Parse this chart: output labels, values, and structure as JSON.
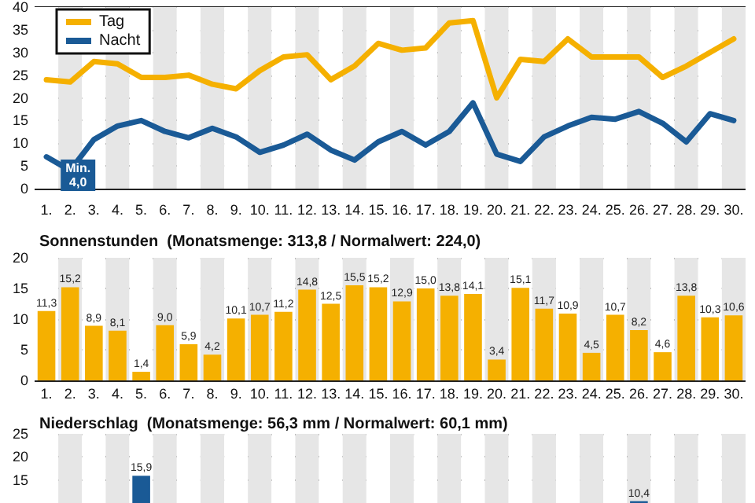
{
  "chart_data": [
    {
      "type": "line",
      "categories": [
        "1.",
        "2.",
        "3.",
        "4.",
        "5.",
        "6.",
        "7.",
        "8.",
        "9.",
        "10.",
        "11.",
        "12.",
        "13.",
        "14.",
        "15.",
        "16.",
        "17.",
        "18.",
        "19.",
        "20.",
        "21.",
        "22.",
        "23.",
        "24.",
        "25.",
        "26.",
        "27.",
        "28.",
        "29.",
        "30."
      ],
      "series": [
        {
          "name": "Tag",
          "color": "#f5b000",
          "values": [
            24,
            23.5,
            28,
            27.5,
            24.5,
            24.5,
            25,
            23,
            22,
            26,
            29,
            29.5,
            24,
            27,
            32,
            30.5,
            31,
            36.5,
            37,
            20,
            28.5,
            28,
            33,
            29,
            29,
            29,
            24.5,
            27,
            30,
            33
          ]
        },
        {
          "name": "Nacht",
          "color": "#1a5a96",
          "values": [
            7,
            4,
            10.8,
            13.8,
            15,
            12.6,
            11.2,
            13.3,
            11.4,
            8,
            9.6,
            12,
            8.5,
            6.3,
            10.3,
            12.6,
            9.6,
            12.6,
            18.9,
            7.6,
            6,
            11.4,
            13.8,
            15.7,
            15.3,
            17,
            14.4,
            10.3,
            16.5,
            15
          ]
        }
      ],
      "ylim": [
        0,
        40
      ],
      "yticks": [
        0,
        5,
        10,
        15,
        20,
        25,
        30,
        35,
        40
      ],
      "grid": "y",
      "legend": "top left",
      "marker": "none",
      "annotations": [
        {
          "text": "Min.\n4,0",
          "x": "2.",
          "y": 4
        }
      ]
    },
    {
      "type": "bar",
      "title": "Sonnenstunden  (Monatsmenge: 313,8 / Normalwert: 224,0)",
      "categories": [
        "1.",
        "2.",
        "3.",
        "4.",
        "5.",
        "6.",
        "7.",
        "8.",
        "9.",
        "10.",
        "11.",
        "12.",
        "13.",
        "14.",
        "15.",
        "16.",
        "17.",
        "18.",
        "19.",
        "20.",
        "21.",
        "22.",
        "23.",
        "24.",
        "25.",
        "26.",
        "27.",
        "28.",
        "29.",
        "30."
      ],
      "values": [
        11.3,
        15.2,
        8.9,
        8.1,
        1.4,
        9.0,
        5.9,
        4.2,
        10.1,
        10.7,
        11.2,
        14.8,
        12.5,
        15.5,
        15.2,
        12.9,
        15.0,
        13.8,
        14.1,
        3.4,
        15.1,
        11.7,
        10.9,
        4.5,
        10.7,
        8.2,
        4.6,
        13.8,
        10.3,
        10.6
      ],
      "value_labels": [
        "11,3",
        "15,2",
        "8,9",
        "8,1",
        "1,4",
        "9,0",
        "5,9",
        "4,2",
        "10,1",
        "10,7",
        "11,2",
        "14,8",
        "12,5",
        "15,5",
        "15,2",
        "12,9",
        "15,0",
        "13,8",
        "14,1",
        "3,4",
        "15,1",
        "11,7",
        "10,9",
        "4,5",
        "10,7",
        "8,2",
        "4,6",
        "13,8",
        "10,3",
        "10,6"
      ],
      "color": "#f5b000",
      "ylim": [
        0,
        20
      ],
      "yticks": [
        0,
        5,
        10,
        15,
        20
      ],
      "grid": "y"
    },
    {
      "type": "bar",
      "title": "Niederschlag  (Monatsmenge: 56,3 mm / Normalwert: 60,1 mm)",
      "categories": [
        "1.",
        "2.",
        "3.",
        "4.",
        "5.",
        "6.",
        "7.",
        "8.",
        "9.",
        "10.",
        "11.",
        "12.",
        "13.",
        "14.",
        "15.",
        "16.",
        "17.",
        "18.",
        "19.",
        "20.",
        "21.",
        "22.",
        "23.",
        "24.",
        "25.",
        "26.",
        "27.",
        "28.",
        "29.",
        "30."
      ],
      "values": [
        null,
        null,
        null,
        null,
        15.9,
        null,
        null,
        null,
        null,
        null,
        null,
        null,
        null,
        null,
        null,
        null,
        null,
        null,
        null,
        null,
        null,
        null,
        null,
        null,
        null,
        10.4,
        null,
        null,
        null,
        null
      ],
      "value_labels": [
        null,
        null,
        null,
        null,
        "15,9",
        null,
        null,
        null,
        null,
        null,
        null,
        null,
        null,
        null,
        null,
        null,
        null,
        null,
        null,
        null,
        null,
        null,
        null,
        null,
        null,
        "10,4",
        null,
        null,
        null,
        null
      ],
      "color": "#1a5a96",
      "ylim": [
        10,
        25
      ],
      "yticks": [
        15,
        20,
        25
      ],
      "grid": "y",
      "tick_labels": "y"
    }
  ]
}
